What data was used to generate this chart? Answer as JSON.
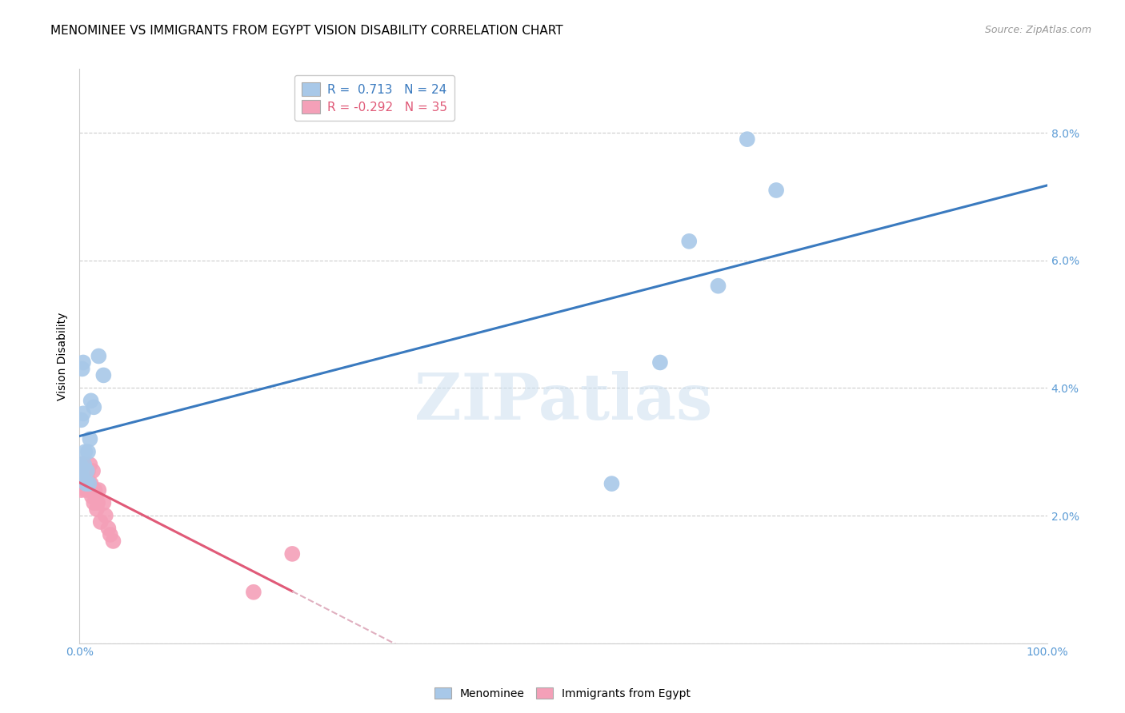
{
  "title": "MENOMINEE VS IMMIGRANTS FROM EGYPT VISION DISABILITY CORRELATION CHART",
  "source": "Source: ZipAtlas.com",
  "ylabel": "Vision Disability",
  "xlim": [
    0.0,
    1.0
  ],
  "ylim": [
    0.0,
    0.09
  ],
  "yticks": [
    0.0,
    0.02,
    0.04,
    0.06,
    0.08
  ],
  "ytick_labels": [
    "",
    "2.0%",
    "4.0%",
    "6.0%",
    "8.0%"
  ],
  "xticks": [
    0.0,
    0.25,
    0.5,
    0.75,
    1.0
  ],
  "xtick_labels": [
    "0.0%",
    "",
    "",
    "",
    "100.0%"
  ],
  "menominee_color": "#a8c8e8",
  "egypt_color": "#f4a0b8",
  "menominee_line_color": "#3a7abf",
  "egypt_line_color": "#e05a78",
  "egypt_line_dash_color": "#e0b0c0",
  "title_fontsize": 11,
  "source_fontsize": 9,
  "axis_label_fontsize": 10,
  "tick_fontsize": 10,
  "legend_fontsize": 10,
  "menominee_x": [
    0.001,
    0.002,
    0.002,
    0.003,
    0.003,
    0.004,
    0.004,
    0.005,
    0.006,
    0.007,
    0.008,
    0.009,
    0.01,
    0.011,
    0.012,
    0.015,
    0.02,
    0.025,
    0.55,
    0.6,
    0.63,
    0.66,
    0.69,
    0.72
  ],
  "menominee_y": [
    0.028,
    0.027,
    0.035,
    0.026,
    0.043,
    0.036,
    0.044,
    0.028,
    0.03,
    0.025,
    0.027,
    0.03,
    0.025,
    0.032,
    0.038,
    0.037,
    0.045,
    0.042,
    0.025,
    0.044,
    0.063,
    0.056,
    0.079,
    0.071
  ],
  "egypt_x": [
    0.001,
    0.001,
    0.001,
    0.002,
    0.002,
    0.002,
    0.003,
    0.003,
    0.004,
    0.004,
    0.005,
    0.006,
    0.007,
    0.007,
    0.008,
    0.009,
    0.01,
    0.011,
    0.012,
    0.013,
    0.014,
    0.015,
    0.016,
    0.017,
    0.018,
    0.019,
    0.02,
    0.022,
    0.025,
    0.027,
    0.03,
    0.032,
    0.035,
    0.18,
    0.22
  ],
  "egypt_y": [
    0.025,
    0.027,
    0.028,
    0.024,
    0.026,
    0.027,
    0.026,
    0.028,
    0.027,
    0.027,
    0.028,
    0.027,
    0.024,
    0.025,
    0.025,
    0.027,
    0.025,
    0.028,
    0.025,
    0.023,
    0.027,
    0.022,
    0.024,
    0.023,
    0.021,
    0.022,
    0.024,
    0.019,
    0.022,
    0.02,
    0.018,
    0.017,
    0.016,
    0.008,
    0.014
  ],
  "menominee_R": 0.713,
  "menominee_N": 24,
  "egypt_R": -0.292,
  "egypt_N": 35,
  "watermark_text": "ZIPatlas"
}
